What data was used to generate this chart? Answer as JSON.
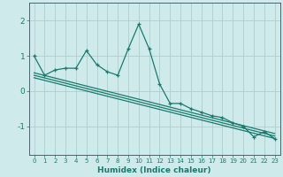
{
  "x": [
    0,
    1,
    2,
    3,
    4,
    5,
    6,
    7,
    8,
    9,
    10,
    11,
    12,
    13,
    14,
    15,
    16,
    17,
    18,
    19,
    20,
    21,
    22,
    23
  ],
  "line1": [
    1.0,
    0.45,
    0.6,
    0.65,
    0.65,
    1.15,
    0.75,
    0.55,
    0.45,
    1.2,
    1.9,
    1.2,
    0.2,
    -0.35,
    -0.35,
    -0.5,
    -0.6,
    -0.7,
    -0.75,
    -0.9,
    -1.0,
    -1.3,
    -1.15,
    -1.35
  ],
  "trend1": [
    0.52,
    0.445,
    0.37,
    0.295,
    0.22,
    0.145,
    0.07,
    -0.005,
    -0.08,
    -0.155,
    -0.23,
    -0.305,
    -0.38,
    -0.455,
    -0.53,
    -0.605,
    -0.68,
    -0.755,
    -0.83,
    -0.905,
    -0.98,
    -1.055,
    -1.13,
    -1.205
  ],
  "trend2": [
    0.45,
    0.375,
    0.3,
    0.225,
    0.15,
    0.075,
    0.0,
    -0.075,
    -0.15,
    -0.225,
    -0.3,
    -0.375,
    -0.45,
    -0.525,
    -0.6,
    -0.675,
    -0.75,
    -0.825,
    -0.9,
    -0.975,
    -1.05,
    -1.125,
    -1.2,
    -1.275
  ],
  "trend3": [
    0.38,
    0.305,
    0.23,
    0.155,
    0.08,
    0.005,
    -0.07,
    -0.145,
    -0.22,
    -0.295,
    -0.37,
    -0.445,
    -0.52,
    -0.595,
    -0.67,
    -0.745,
    -0.82,
    -0.895,
    -0.97,
    -1.045,
    -1.12,
    -1.195,
    -1.27,
    -1.345
  ],
  "color": "#1a7a6e",
  "bg_color": "#ceeaea",
  "grid_color": "#aecece",
  "xlabel": "Humidex (Indice chaleur)",
  "ylim": [
    -1.8,
    2.5
  ],
  "xlim": [
    -0.5,
    23.5
  ],
  "yticks": [
    -1,
    0,
    1,
    2
  ],
  "xticks": [
    0,
    1,
    2,
    3,
    4,
    5,
    6,
    7,
    8,
    9,
    10,
    11,
    12,
    13,
    14,
    15,
    16,
    17,
    18,
    19,
    20,
    21,
    22,
    23
  ]
}
